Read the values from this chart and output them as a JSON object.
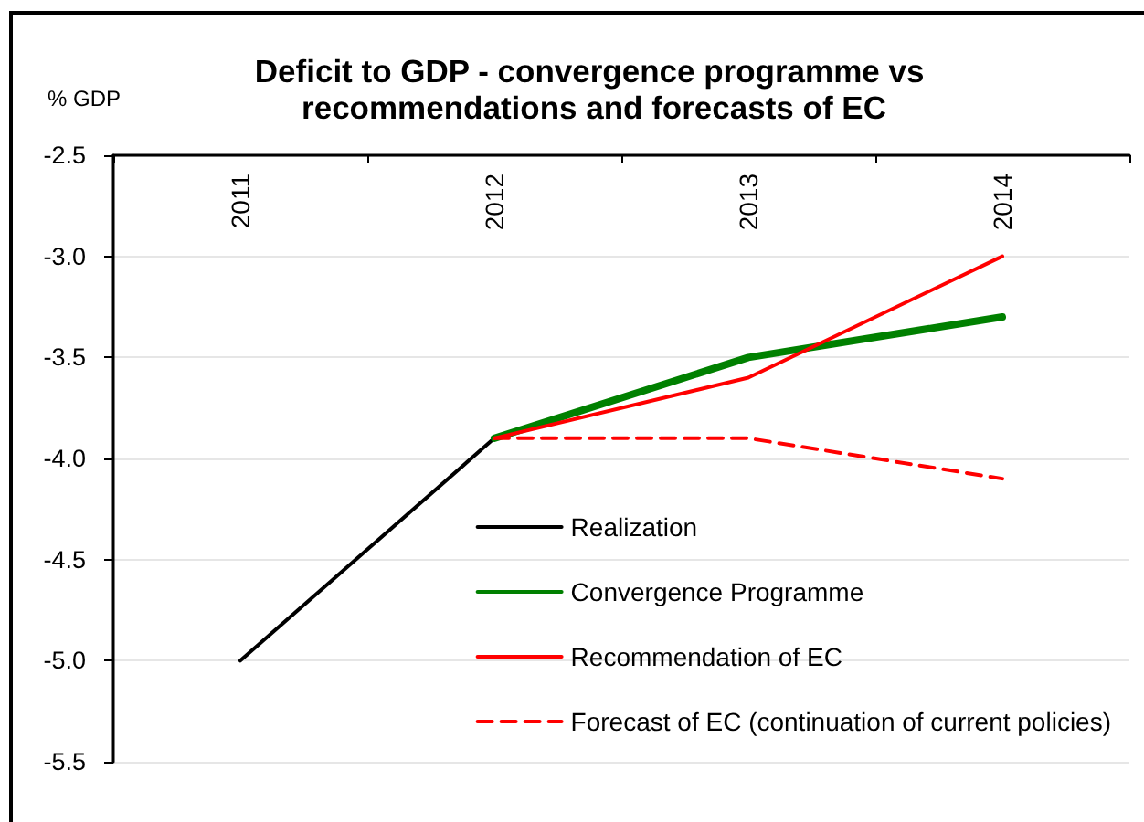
{
  "chart_data": {
    "type": "line",
    "title": "Deficit to GDP - convergence programme vs recommendations and forecasts of EC",
    "ylabel": "% GDP",
    "categories": [
      "2011",
      "2012",
      "2013",
      "2014"
    ],
    "series": [
      {
        "name": "Realization",
        "color": "#000000",
        "values": [
          -5.0,
          -3.9,
          null,
          null
        ]
      },
      {
        "name": "Convergence Programme",
        "color": "#008000",
        "values": [
          null,
          -3.9,
          -3.5,
          -3.3
        ]
      },
      {
        "name": "Recommendation of EC",
        "color": "#ff0000",
        "values": [
          null,
          -3.9,
          -3.6,
          -3.0
        ]
      },
      {
        "name": "Forecast of EC (continuation of current policies)",
        "color": "#ff0000",
        "values": [
          null,
          -3.9,
          -3.9,
          -4.1
        ],
        "line_style": "dashed"
      }
    ],
    "ylim": [
      -5.5,
      -2.5
    ],
    "yticks": [
      {
        "value": -5.5,
        "label": "-5.5"
      },
      {
        "value": -5.0,
        "label": "-5.0"
      },
      {
        "value": -4.5,
        "label": "-4.5"
      },
      {
        "value": -4.0,
        "label": "-4.0"
      },
      {
        "value": -3.5,
        "label": "-3.5"
      },
      {
        "value": -3.0,
        "label": "-3.0"
      },
      {
        "value": -2.5,
        "label": "-2.5"
      }
    ],
    "grid": "y",
    "legend": "bottom right",
    "marker": "none",
    "line_style": "solid"
  }
}
